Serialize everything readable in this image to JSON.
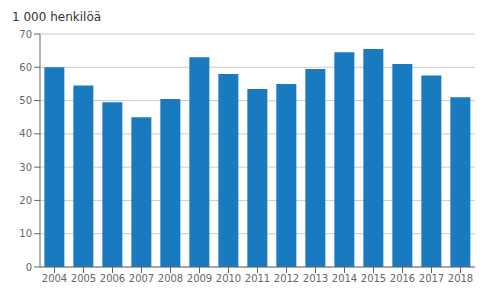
{
  "chart_data": {
    "type": "bar",
    "ylabel": "1 000 henkilöä",
    "categories": [
      "2004",
      "2005",
      "2006",
      "2007",
      "2008",
      "2009",
      "2010",
      "2011",
      "2012",
      "2013",
      "2014",
      "2015",
      "2016",
      "2017",
      "2018"
    ],
    "values": [
      60,
      54.5,
      49.5,
      45,
      50.5,
      63,
      58,
      53.5,
      55,
      59.5,
      64.5,
      65.5,
      61,
      57.5,
      51
    ],
    "color": "#1a7abf",
    "ylim": [
      0,
      70
    ],
    "yticks": [
      0,
      10,
      20,
      30,
      40,
      50,
      60,
      70
    ],
    "grid": true
  }
}
